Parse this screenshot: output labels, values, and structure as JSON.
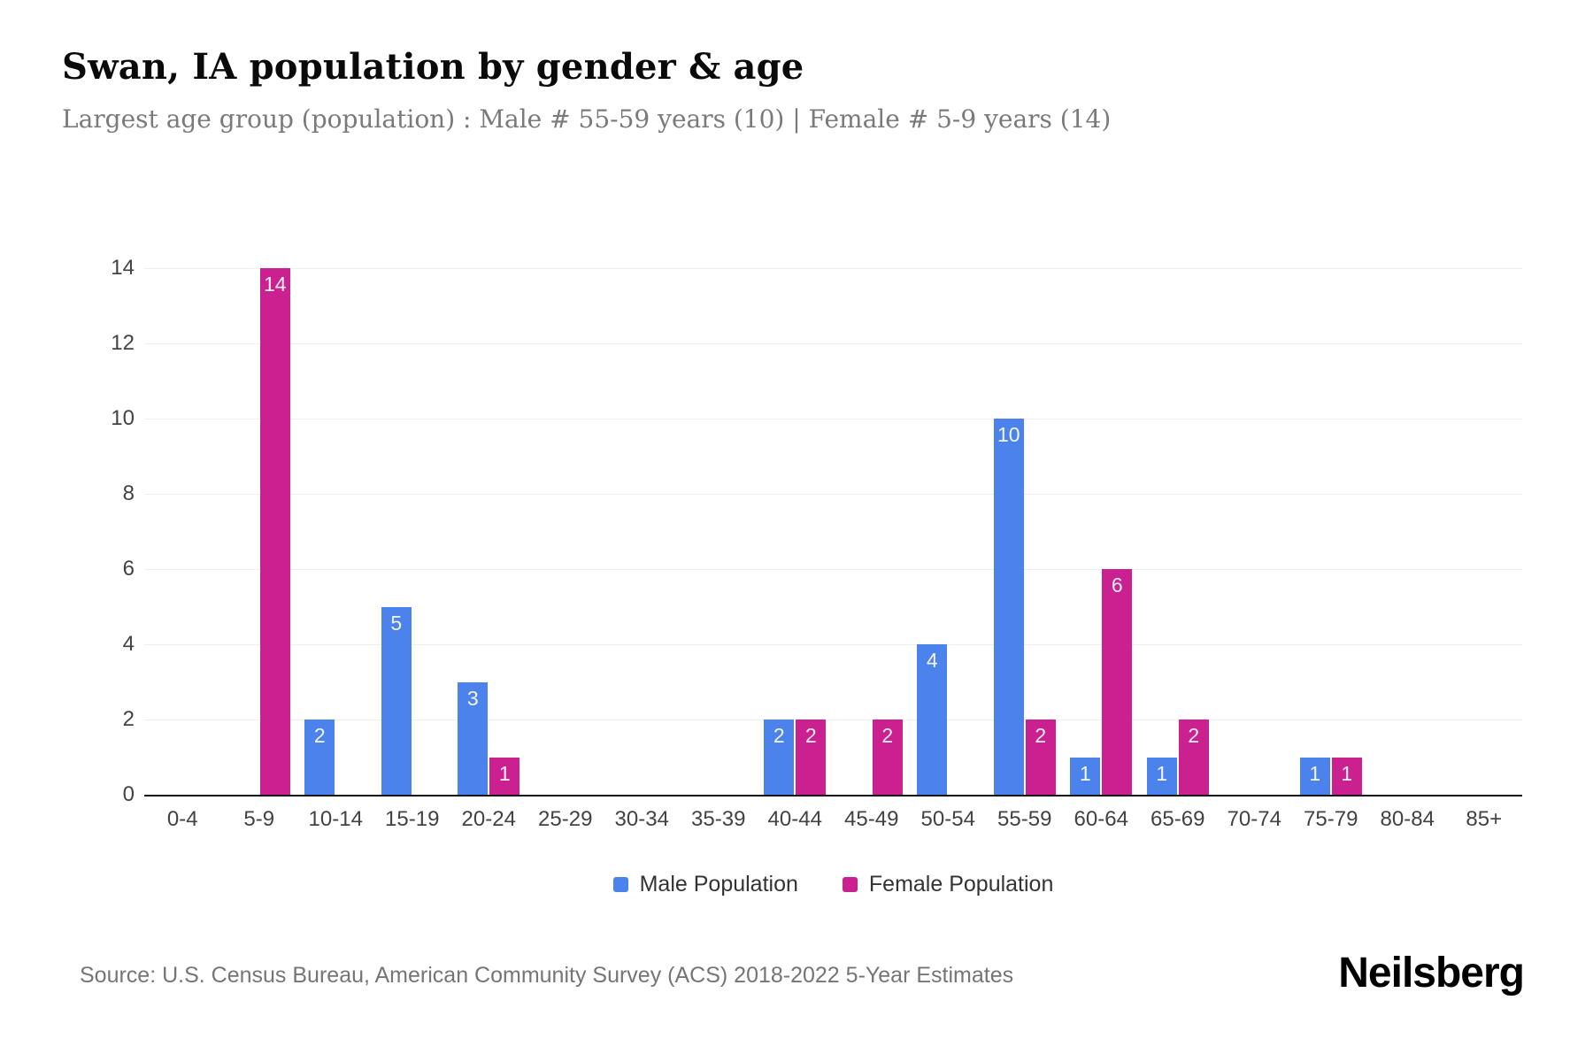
{
  "title": "Swan, IA population by gender & age",
  "subtitle": "Largest age group (population) : Male # 55-59 years (10) | Female # 5-9 years (14)",
  "source": "Source: U.S. Census Bureau, American Community Survey (ACS) 2018-2022 5-Year Estimates",
  "brand": "Neilsberg",
  "colors": {
    "male": "#4C82EC",
    "female": "#CB2090",
    "grid": "#EFEFEF",
    "axis": "#141414",
    "bar_label": "#FFFFFF",
    "tick_text": "#424242",
    "subtitle_text": "#7A7A7A"
  },
  "legend": [
    {
      "label": "Male Population",
      "color": "#4C82EC"
    },
    {
      "label": "Female Population",
      "color": "#CB2090"
    }
  ],
  "chart_data": {
    "type": "bar",
    "title": "Swan, IA population by gender & age",
    "subtitle": "Largest age group (population) : Male # 55-59 years (10) | Female # 5-9 years (14)",
    "categories": [
      "0-4",
      "5-9",
      "10-14",
      "15-19",
      "20-24",
      "25-29",
      "30-34",
      "35-39",
      "40-44",
      "45-49",
      "50-54",
      "55-59",
      "60-64",
      "65-69",
      "70-74",
      "75-79",
      "80-84",
      "85+"
    ],
    "series": [
      {
        "name": "Male Population",
        "color": "#4C82EC",
        "values": [
          0,
          0,
          2,
          5,
          3,
          0,
          0,
          0,
          2,
          0,
          4,
          10,
          1,
          1,
          0,
          1,
          0,
          0
        ]
      },
      {
        "name": "Female Population",
        "color": "#CB2090",
        "values": [
          0,
          14,
          0,
          0,
          1,
          0,
          0,
          0,
          2,
          2,
          0,
          2,
          6,
          2,
          0,
          1,
          0,
          0
        ]
      }
    ],
    "xlabel": "",
    "ylabel": "",
    "ylim": [
      0,
      14
    ],
    "yticks": [
      0,
      2,
      4,
      6,
      8,
      10,
      12,
      14
    ],
    "grid": true,
    "legend_position": "bottom"
  }
}
